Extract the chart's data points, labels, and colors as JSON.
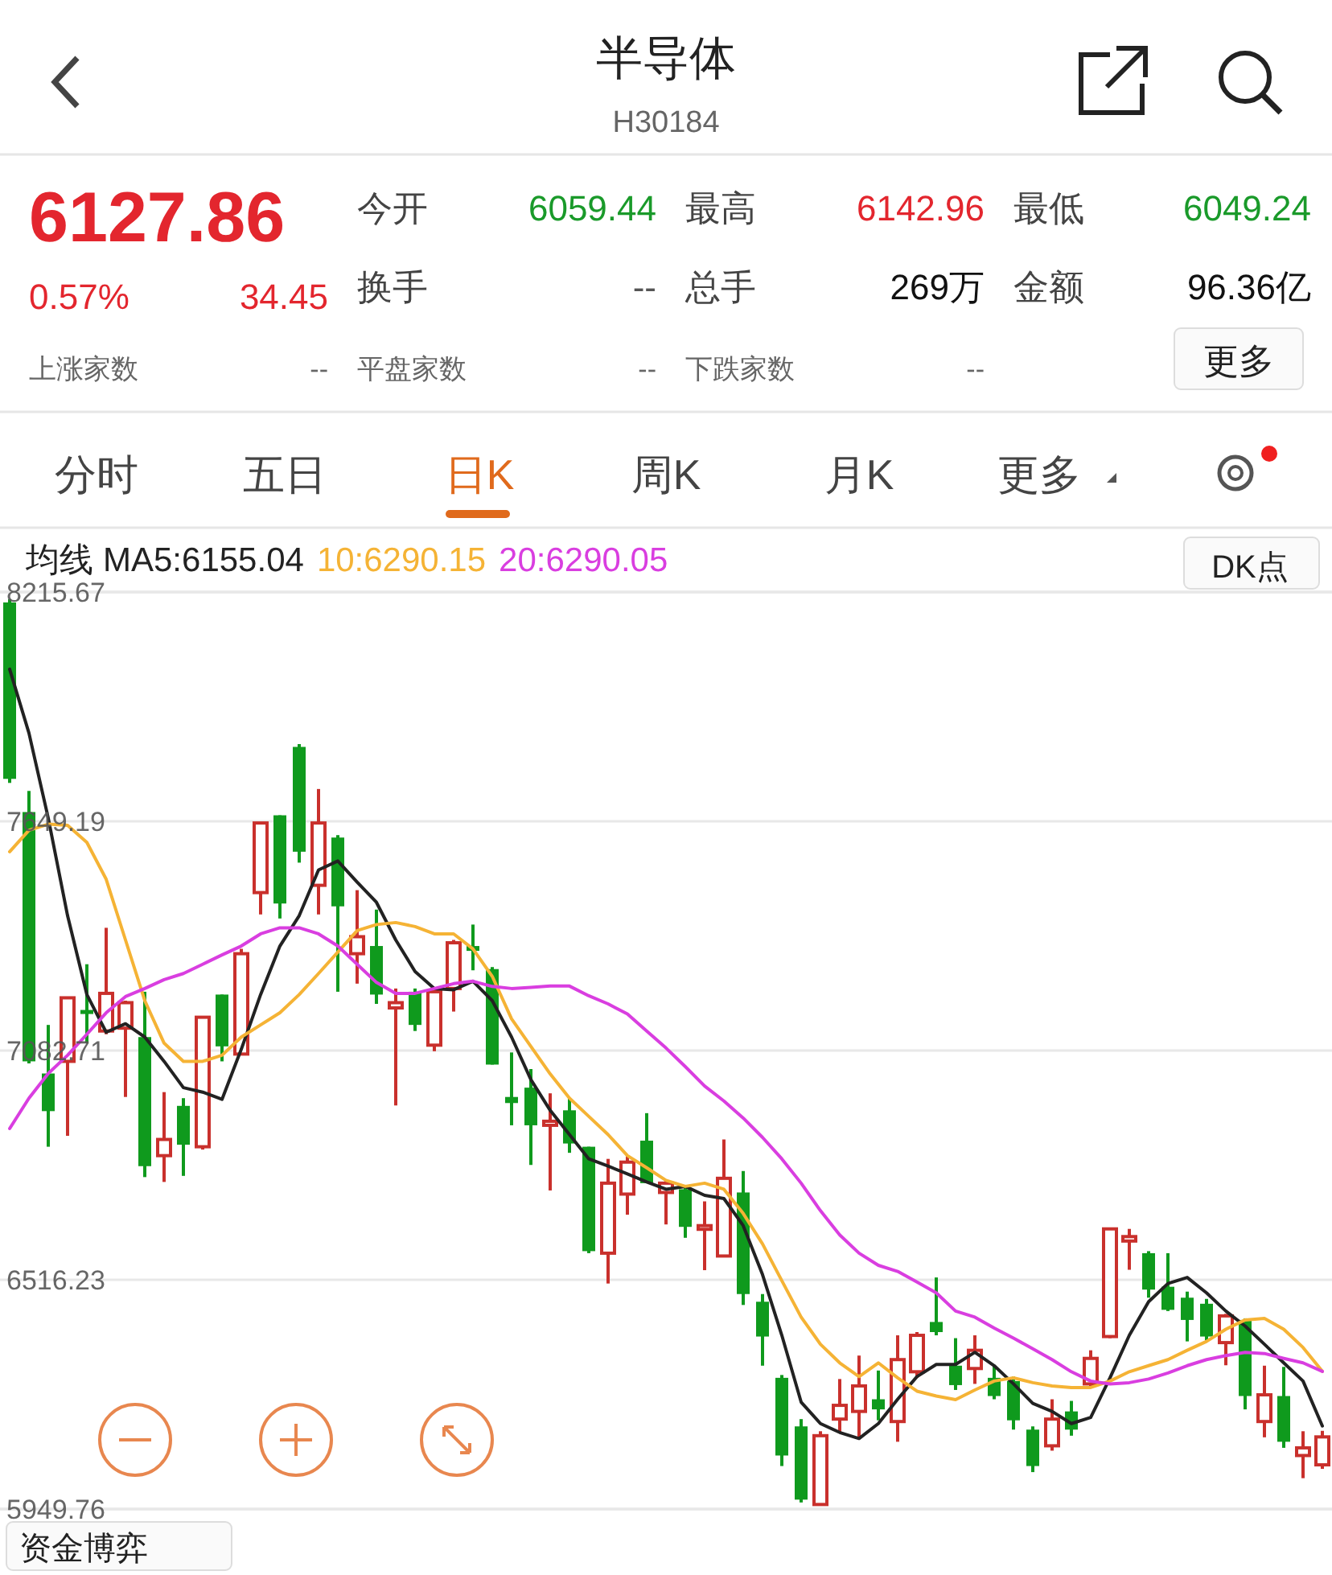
{
  "chart_data": {
    "type": "candlestick",
    "title": "半导体",
    "subtitle": "H30184",
    "legend_title": "均线",
    "legend": "top left",
    "grid": "y",
    "annotations": [
      "6127.86",
      "0.57%",
      "34.45",
      "今开",
      "6059.44",
      "最高",
      "6142.96",
      "最低",
      "6049.24",
      "换手",
      "--",
      "总手",
      "269万",
      "金额",
      "96.36亿",
      "上涨家数",
      "--",
      "平盘家数",
      "--",
      "下跌家数",
      "--",
      "更多",
      "分时",
      "五日",
      "日K",
      "周K",
      "月K",
      "更多",
      "DK点",
      "资金博弈"
    ],
    "ylim": [
      5949.76,
      8215.67
    ],
    "yticks": [
      5949.76,
      6516.23,
      7082.71,
      7649.19,
      8215.67
    ],
    "categories": [
      null,
      null,
      null,
      null,
      null,
      null,
      null,
      null,
      null,
      null,
      null,
      null,
      null,
      null,
      null,
      null,
      null,
      null,
      null,
      null,
      null,
      null,
      null,
      null,
      null,
      null,
      null,
      null,
      null,
      null,
      null,
      null,
      null,
      null,
      null,
      null,
      null,
      null,
      null,
      null,
      null,
      null,
      null,
      null,
      null,
      null,
      null,
      null,
      null,
      null,
      null,
      null,
      null,
      null,
      null,
      null,
      null,
      null,
      null,
      null,
      null,
      null,
      null,
      null,
      null,
      null,
      null,
      null,
      null
    ],
    "ohlc": [
      [
        8190,
        8198,
        7744,
        7754
      ],
      [
        7672,
        7724,
        7051,
        7056
      ],
      [
        7026,
        7146,
        6845,
        6933
      ],
      [
        7056,
        7213,
        6872,
        7213
      ],
      [
        7183,
        7296,
        7101,
        7173
      ],
      [
        7131,
        7386,
        7123,
        7224
      ],
      [
        7138,
        7206,
        6968,
        7201
      ],
      [
        7116,
        7228,
        6770,
        6797
      ],
      [
        6823,
        6980,
        6758,
        6863
      ],
      [
        6946,
        6965,
        6773,
        6850
      ],
      [
        6845,
        7165,
        6838,
        7165
      ],
      [
        7221,
        7221,
        7056,
        7093
      ],
      [
        7074,
        7334,
        7071,
        7322
      ],
      [
        7473,
        7645,
        7419,
        7645
      ],
      [
        7664,
        7664,
        7409,
        7446
      ],
      [
        7833,
        7840,
        7547,
        7574
      ],
      [
        7491,
        7729,
        7419,
        7645
      ],
      [
        7609,
        7615,
        7228,
        7439
      ],
      [
        7322,
        7479,
        7248,
        7364
      ],
      [
        7341,
        7431,
        7198,
        7221
      ],
      [
        7188,
        7236,
        6947,
        7201
      ],
      [
        7228,
        7236,
        7131,
        7146
      ],
      [
        7096,
        7228,
        7081,
        7228
      ],
      [
        7236,
        7356,
        7179,
        7349
      ],
      [
        7341,
        7394,
        7281,
        7329
      ],
      [
        7284,
        7289,
        7048,
        7048
      ],
      [
        6968,
        7078,
        6898,
        6953
      ],
      [
        6991,
        7037,
        6800,
        6898
      ],
      [
        6898,
        6977,
        6737,
        6908
      ],
      [
        6935,
        6965,
        6830,
        6853
      ],
      [
        6845,
        6845,
        6582,
        6587
      ],
      [
        6582,
        6815,
        6507,
        6755
      ],
      [
        6728,
        6823,
        6677,
        6807
      ],
      [
        6860,
        6928,
        6755,
        6755
      ],
      [
        6732,
        6762,
        6653,
        6755
      ],
      [
        6740,
        6747,
        6620,
        6647
      ],
      [
        6641,
        6710,
        6540,
        6650
      ],
      [
        6575,
        6863,
        6575,
        6767
      ],
      [
        6732,
        6785,
        6454,
        6481
      ],
      [
        6462,
        6481,
        6304,
        6376
      ],
      [
        6274,
        6281,
        6056,
        6082
      ],
      [
        6154,
        6172,
        5966,
        5973
      ],
      [
        5961,
        6142,
        5958,
        6131
      ],
      [
        6172,
        6271,
        6139,
        6206
      ],
      [
        6191,
        6329,
        6127,
        6254
      ],
      [
        6221,
        6292,
        6169,
        6196
      ],
      [
        6166,
        6379,
        6116,
        6319
      ],
      [
        6289,
        6387,
        6274,
        6379
      ],
      [
        6412,
        6522,
        6379,
        6387
      ],
      [
        6304,
        6372,
        6244,
        6256
      ],
      [
        6297,
        6379,
        6259,
        6342
      ],
      [
        6274,
        6304,
        6221,
        6229
      ],
      [
        6266,
        6277,
        6146,
        6169
      ],
      [
        6146,
        6154,
        6041,
        6056
      ],
      [
        6106,
        6221,
        6094,
        6172
      ],
      [
        6191,
        6217,
        6131,
        6146
      ],
      [
        6259,
        6342,
        6251,
        6322
      ],
      [
        6376,
        6642,
        6372,
        6642
      ],
      [
        6612,
        6642,
        6541,
        6623
      ],
      [
        6582,
        6587,
        6472,
        6492
      ],
      [
        6499,
        6582,
        6439,
        6442
      ],
      [
        6472,
        6487,
        6364,
        6417
      ],
      [
        6457,
        6469,
        6367,
        6376
      ],
      [
        6361,
        6432,
        6305,
        6427
      ],
      [
        6417,
        6421,
        6196,
        6229
      ],
      [
        6166,
        6304,
        6127,
        6232
      ],
      [
        6229,
        6301,
        6101,
        6116
      ],
      [
        6082,
        6142,
        6026,
        6101
      ],
      [
        6059,
        6143,
        6049,
        6128
      ]
    ],
    "series": [
      {
        "type": "line",
        "name": "MA5:6155.04",
        "color": "#222222",
        "values": [
          8025,
          7867,
          7657,
          7416,
          7221,
          7128,
          7149,
          7116,
          7056,
          6991,
          6980,
          6962,
          7086,
          7221,
          7341,
          7416,
          7529,
          7551,
          7499,
          7449,
          7356,
          7278,
          7236,
          7233,
          7254,
          7206,
          7116,
          7011,
          6935,
          6875,
          6815,
          6797,
          6778,
          6758,
          6740,
          6747,
          6725,
          6717,
          6650,
          6529,
          6379,
          6214,
          6161,
          6139,
          6124,
          6161,
          6221,
          6277,
          6307,
          6307,
          6337,
          6304,
          6259,
          6211,
          6191,
          6161,
          6176,
          6274,
          6379,
          6462,
          6507,
          6522,
          6484,
          6439,
          6402,
          6357,
          6311,
          6266,
          6155
        ]
      },
      {
        "type": "line",
        "name": "10:6290.15",
        "color": "#f5b335",
        "values": [
          7574,
          7627,
          7642,
          7639,
          7597,
          7506,
          7356,
          7206,
          7101,
          7056,
          7056,
          7071,
          7116,
          7146,
          7176,
          7221,
          7273,
          7326,
          7379,
          7394,
          7399,
          7389,
          7371,
          7371,
          7334,
          7266,
          7161,
          7093,
          7025,
          6965,
          6920,
          6875,
          6823,
          6793,
          6762,
          6747,
          6755,
          6740,
          6680,
          6605,
          6514,
          6424,
          6357,
          6311,
          6277,
          6311,
          6274,
          6241,
          6229,
          6220,
          6244,
          6266,
          6274,
          6262,
          6254,
          6250,
          6250,
          6266,
          6289,
          6304,
          6319,
          6342,
          6364,
          6394,
          6417,
          6421,
          6394,
          6349,
          6290
        ]
      },
      {
        "type": "line",
        "name": "20:6290.05",
        "color": "#d93ee0",
        "values": [
          6890,
          6965,
          7026,
          7071,
          7123,
          7176,
          7216,
          7236,
          7258,
          7273,
          7296,
          7319,
          7341,
          7371,
          7386,
          7386,
          7371,
          7341,
          7296,
          7251,
          7224,
          7224,
          7236,
          7248,
          7254,
          7241,
          7236,
          7239,
          7242,
          7242,
          7218,
          7198,
          7173,
          7131,
          7089,
          7043,
          6995,
          6958,
          6916,
          6868,
          6815,
          6755,
          6687,
          6627,
          6582,
          6552,
          6537,
          6511,
          6484,
          6439,
          6424,
          6397,
          6372,
          6346,
          6319,
          6289,
          6266,
          6259,
          6262,
          6271,
          6286,
          6304,
          6319,
          6329,
          6337,
          6334,
          6322,
          6311,
          6290
        ]
      }
    ]
  }
}
